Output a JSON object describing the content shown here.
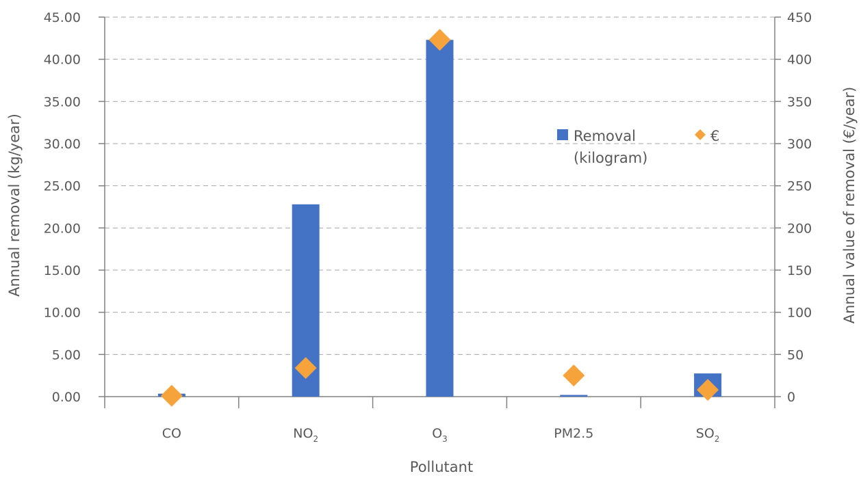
{
  "chart_data": {
    "type": "bar",
    "title": "",
    "categories": [
      "CO",
      "NO",
      "O",
      "PM2.5",
      "SO"
    ],
    "category_subscripts": [
      "",
      "2",
      "3",
      "",
      "2"
    ],
    "xlabel": "Pollutant",
    "ylabel": "Annual removal (kg/year)",
    "y2label": "Annual value of removal (€/year)",
    "ylim": [
      0,
      45
    ],
    "y2lim": [
      0,
      450
    ],
    "yticks": [
      "0.00",
      "5.00",
      "10.00",
      "15.00",
      "20.00",
      "25.00",
      "30.00",
      "35.00",
      "40.00",
      "45.00"
    ],
    "y2ticks": [
      "0",
      "50",
      "100",
      "150",
      "200",
      "250",
      "300",
      "350",
      "400",
      "450"
    ],
    "series": [
      {
        "name": "Removal (kilogram)",
        "name_lines": [
          "Removal",
          "(kilogram)"
        ],
        "type": "bar",
        "axis": "left",
        "color": "#4472C4",
        "values": [
          0.35,
          22.8,
          42.3,
          0.2,
          2.75
        ]
      },
      {
        "name": "€",
        "type": "scatter",
        "marker": "diamond",
        "axis": "right",
        "color": "#F5A33A",
        "values": [
          1,
          34,
          423,
          25,
          8
        ]
      }
    ],
    "grid": true,
    "legend_position": "upper-right"
  }
}
